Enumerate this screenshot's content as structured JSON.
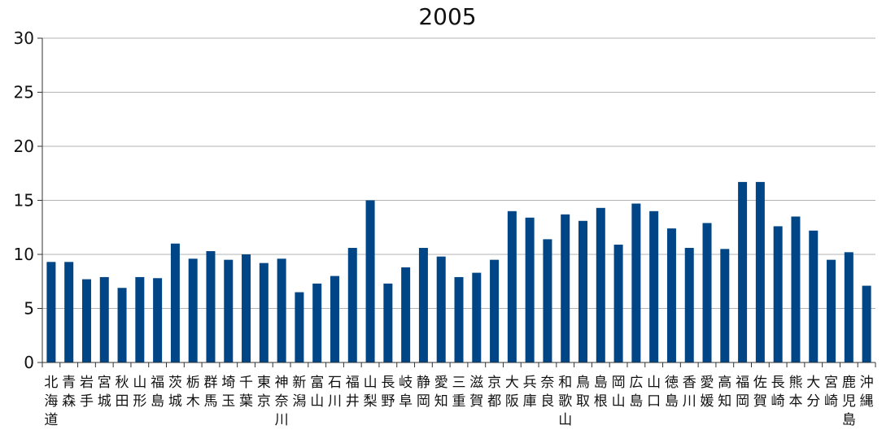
{
  "chart_data": {
    "type": "bar",
    "title": "2005",
    "xlabel": "",
    "ylabel": "",
    "ylim": [
      0,
      30
    ],
    "yticks": [
      0,
      5,
      10,
      15,
      20,
      25,
      30
    ],
    "grid": true,
    "bar_color": "#004586",
    "grid_color": "#b3b3b3",
    "categories": [
      "北海道",
      "青森",
      "岩手",
      "宮城",
      "秋田",
      "山形",
      "福島",
      "茨城",
      "栃木",
      "群馬",
      "埼玉",
      "千葉",
      "東京",
      "神奈川",
      "新潟",
      "富山",
      "石川",
      "福井",
      "山梨",
      "長野",
      "岐阜",
      "静岡",
      "愛知",
      "三重",
      "滋賀",
      "京都",
      "大阪",
      "兵庫",
      "奈良",
      "和歌山",
      "鳥取",
      "島根",
      "岡山",
      "広島",
      "山口",
      "徳島",
      "香川",
      "愛媛",
      "高知",
      "福岡",
      "佐賀",
      "長崎",
      "熊本",
      "大分",
      "宮崎",
      "鹿児島",
      "沖縄"
    ],
    "values": [
      9.3,
      9.3,
      7.7,
      7.9,
      6.9,
      7.9,
      7.8,
      11.0,
      9.6,
      10.3,
      9.5,
      10.0,
      9.2,
      9.6,
      6.5,
      7.3,
      8.0,
      10.6,
      15.0,
      7.3,
      8.8,
      10.6,
      9.8,
      7.9,
      8.3,
      9.5,
      14.0,
      13.4,
      11.4,
      13.7,
      13.1,
      14.3,
      10.9,
      14.7,
      14.0,
      12.4,
      10.6,
      12.9,
      10.5,
      16.7,
      16.7,
      12.6,
      13.5,
      12.2,
      9.5,
      10.2,
      7.1
    ]
  }
}
